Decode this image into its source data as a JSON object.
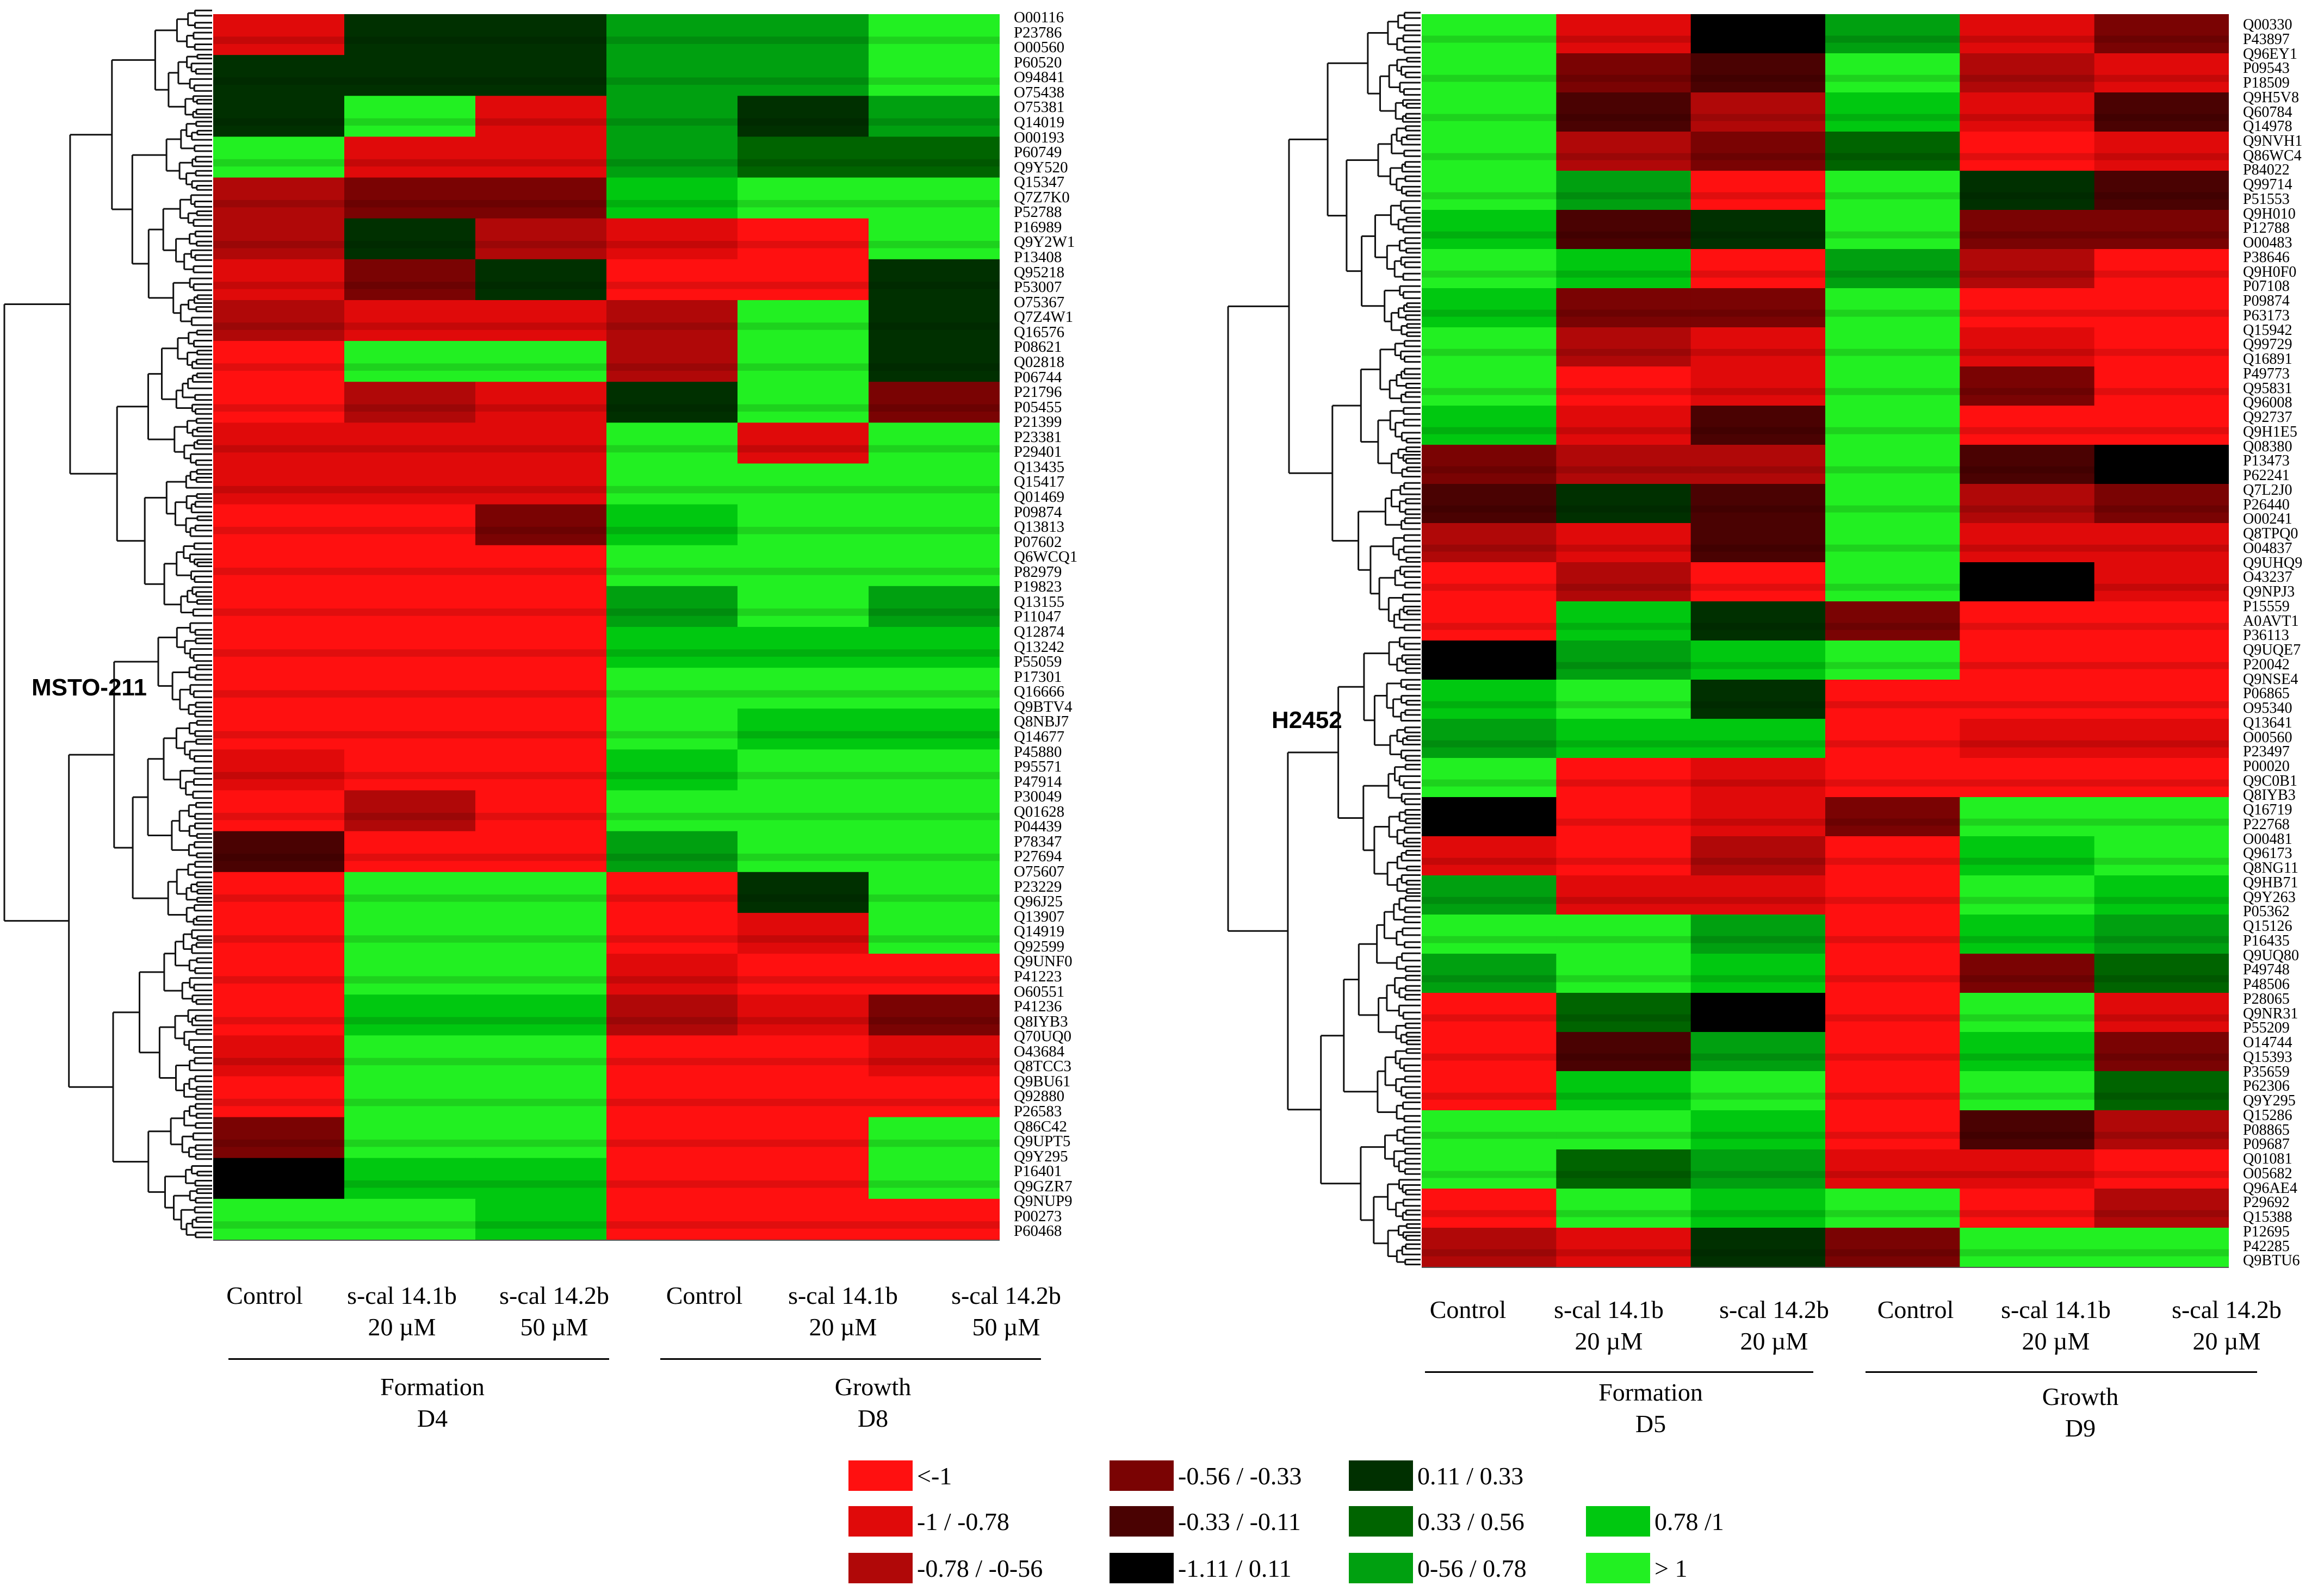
{
  "colors": {
    "neg_gt1": "#ff1010",
    "neg_1_078": "#e00a0a",
    "neg_078_056": "#b00808",
    "neg_056_033": "#7a0303",
    "neg_033_011": "#4a0202",
    "near_zero": "#000000",
    "pos_011_033": "#003000",
    "pos_033_056": "#006400",
    "pos_056_078": "#00a010",
    "pos_078_1": "#00c810",
    "pos_gt1": "#22f022"
  },
  "chart_data": [
    {
      "type": "heatmap",
      "cell_line": "MSTO-211",
      "columns": [
        {
          "label": "Control",
          "dose": ""
        },
        {
          "label": "s-cal 14.1b",
          "dose": "20 µM"
        },
        {
          "label": "s-cal 14.2b",
          "dose": "50 µM"
        },
        {
          "label": "Control",
          "dose": ""
        },
        {
          "label": "s-cal 14.1b",
          "dose": "20 µM"
        },
        {
          "label": "s-cal 14.2b",
          "dose": "50 µM"
        }
      ],
      "groups": [
        {
          "name": "Formation",
          "day": "D4",
          "columns": [
            0,
            1,
            2
          ]
        },
        {
          "name": "Growth",
          "day": "D8",
          "columns": [
            3,
            4,
            5
          ]
        }
      ],
      "row_labels": [
        "O00116",
        "P23786",
        "O00560",
        "P60520",
        "O94841",
        "O75438",
        "O75381",
        "Q14019",
        "O00193",
        "P60749",
        "Q9Y520",
        "Q15347",
        "Q7Z7K0",
        "P52788",
        "P16989",
        "Q9Y2W1",
        "P13408",
        "Q95218",
        "P53007",
        "O75367",
        "Q7Z4W1",
        "Q16576",
        "P08621",
        "Q02818",
        "P06744",
        "P21796",
        "P05455",
        "P21399",
        "P23381",
        "P29401",
        "Q13435",
        "Q15417",
        "Q01469",
        "P09874",
        "Q13813",
        "P07602",
        "Q6WCQ1",
        "P82979",
        "P19823",
        "Q13155",
        "P11047",
        "Q12874",
        "Q13242",
        "P55059",
        "P17301",
        "Q16666",
        "Q9BTV4",
        "Q8NBJ7",
        "Q14677",
        "P45880",
        "P95571",
        "P47914",
        "P30049",
        "Q01628",
        "P04439",
        "P78347",
        "P27694",
        "O75607",
        "P23229",
        "Q96J25",
        "Q13907",
        "Q14919",
        "Q92599",
        "Q9UNF0",
        "P41223",
        "O60551",
        "P41236",
        "Q8IYB3",
        "Q70UQ0",
        "O43684",
        "Q8TCC3",
        "Q9BU61",
        "Q92880",
        "P26583",
        "Q86C42",
        "Q9UPT5",
        "Q9Y295",
        "P16401",
        "Q9GZR7",
        "Q9NUP9",
        "P00273",
        "P60468"
      ],
      "row_blocks": [
        [
          1,
          6,
          6,
          8,
          8,
          10
        ],
        [
          6,
          6,
          6,
          8,
          8,
          10
        ],
        [
          6,
          10,
          1,
          8,
          6,
          8
        ],
        [
          10,
          1,
          1,
          8,
          7,
          7
        ],
        [
          2,
          3,
          3,
          9,
          10,
          10
        ],
        [
          2,
          6,
          2,
          1,
          0,
          10
        ],
        [
          1,
          3,
          6,
          0,
          0,
          6
        ],
        [
          2,
          1,
          1,
          2,
          10,
          6
        ],
        [
          0,
          10,
          10,
          2,
          10,
          6
        ],
        [
          0,
          2,
          1,
          6,
          10,
          3
        ],
        [
          1,
          1,
          1,
          10,
          1,
          10
        ],
        [
          1,
          1,
          1,
          10,
          10,
          10
        ],
        [
          0,
          0,
          3,
          9,
          10,
          10
        ],
        [
          0,
          0,
          0,
          10,
          10,
          10
        ],
        [
          0,
          0,
          0,
          8,
          10,
          8
        ],
        [
          0,
          0,
          0,
          9,
          9,
          9
        ],
        [
          0,
          0,
          0,
          10,
          10,
          10
        ],
        [
          0,
          0,
          0,
          10,
          9,
          9
        ],
        [
          1,
          0,
          0,
          9,
          10,
          10
        ],
        [
          0,
          2,
          0,
          10,
          10,
          10
        ],
        [
          4,
          0,
          0,
          8,
          10,
          10
        ],
        [
          0,
          10,
          10,
          0,
          6,
          10
        ],
        [
          0,
          10,
          10,
          0,
          1,
          10
        ],
        [
          0,
          10,
          10,
          1,
          0,
          0
        ],
        [
          0,
          9,
          9,
          2,
          1,
          3
        ],
        [
          1,
          10,
          10,
          0,
          0,
          1
        ],
        [
          0,
          10,
          10,
          0,
          0,
          0
        ],
        [
          3,
          10,
          10,
          0,
          0,
          10
        ],
        [
          5,
          9,
          9,
          0,
          0,
          10
        ],
        [
          10,
          10,
          9,
          0,
          0,
          0
        ]
      ],
      "legend": [
        {
          "label": "<-1",
          "color_key": "neg_gt1"
        },
        {
          "label": "-1 / -0.78",
          "color_key": "neg_1_078"
        },
        {
          "label": "-0.78 / -0-56",
          "color_key": "neg_078_056"
        },
        {
          "label": "-0.56 / -0.33",
          "color_key": "neg_056_033"
        },
        {
          "label": "-0.33 / -0.11",
          "color_key": "neg_033_011"
        },
        {
          "label": "-1.11 / 0.11",
          "color_key": "near_zero"
        },
        {
          "label": "0.11 / 0.33",
          "color_key": "pos_011_033"
        },
        {
          "label": "0.33 / 0.56",
          "color_key": "pos_033_056"
        },
        {
          "label": "0-56 / 0.78",
          "color_key": "pos_056_078"
        },
        {
          "label": "0.78 /1",
          "color_key": "pos_078_1"
        },
        {
          "label": "> 1",
          "color_key": "pos_gt1"
        }
      ]
    },
    {
      "type": "heatmap",
      "cell_line": "H2452",
      "columns": [
        {
          "label": "Control",
          "dose": ""
        },
        {
          "label": "s-cal 14.1b",
          "dose": "20 µM"
        },
        {
          "label": "s-cal 14.2b",
          "dose": "20 µM"
        },
        {
          "label": "Control",
          "dose": ""
        },
        {
          "label": "s-cal 14.1b",
          "dose": "20 µM"
        },
        {
          "label": "s-cal 14.2b",
          "dose": "20 µM"
        }
      ],
      "groups": [
        {
          "name": "Formation",
          "day": "D5",
          "columns": [
            0,
            1,
            2
          ]
        },
        {
          "name": "Growth",
          "day": "D9",
          "columns": [
            3,
            4,
            5
          ]
        }
      ],
      "row_labels": [
        "Q00330",
        "P43897",
        "Q96EY1",
        "P09543",
        "P18509",
        "Q9H5V8",
        "Q60784",
        "Q14978",
        "Q9NVH1",
        "Q86WC4",
        "P84022",
        "Q99714",
        "P51553",
        "Q9H010",
        "P12788",
        "O00483",
        "P38646",
        "Q9H0F0",
        "P07108",
        "P09874",
        "P63173",
        "Q15942",
        "Q99729",
        "Q16891",
        "P49773",
        "Q95831",
        "Q96008",
        "Q92737",
        "Q9H1E5",
        "Q08380",
        "P13473",
        "P62241",
        "Q7L2J0",
        "P26440",
        "O00241",
        "Q8TPQ0",
        "O04837",
        "Q9UHQ9",
        "O43237",
        "Q9NPJ3",
        "P15559",
        "A0AVT1",
        "P36113",
        "Q9UQE7",
        "P20042",
        "Q9NSE4",
        "P06865",
        "O95340",
        "Q13641",
        "O00560",
        "P23497",
        "P00020",
        "Q9C0B1",
        "Q8IYB3",
        "Q16719",
        "P22768",
        "O00481",
        "Q96173",
        "Q8NG11",
        "Q9HB71",
        "Q9Y263",
        "P05362",
        "Q15126",
        "P16435",
        "Q9UQ80",
        "P49748",
        "P48506",
        "P28065",
        "Q9NR31",
        "P55209",
        "O14744",
        "Q15393",
        "P35659",
        "P62306",
        "Q9Y295",
        "Q15286",
        "P08865",
        "P09687",
        "Q01081",
        "O05682",
        "Q96AE4",
        "P29692",
        "Q15388",
        "P12695",
        "P42285",
        "Q9BTU6"
      ],
      "row_blocks": [
        [
          10,
          1,
          5,
          8,
          1,
          3
        ],
        [
          10,
          3,
          4,
          10,
          2,
          1
        ],
        [
          10,
          4,
          2,
          9,
          1,
          4
        ],
        [
          10,
          2,
          3,
          7,
          0,
          1
        ],
        [
          10,
          8,
          0,
          10,
          6,
          4
        ],
        [
          9,
          4,
          6,
          10,
          3,
          3
        ],
        [
          10,
          9,
          0,
          8,
          2,
          0
        ],
        [
          9,
          3,
          3,
          10,
          0,
          0
        ],
        [
          10,
          2,
          1,
          10,
          1,
          0
        ],
        [
          10,
          0,
          1,
          10,
          3,
          0
        ],
        [
          9,
          1,
          4,
          10,
          0,
          0
        ],
        [
          3,
          2,
          2,
          10,
          4,
          5
        ],
        [
          4,
          6,
          4,
          10,
          2,
          3
        ],
        [
          2,
          1,
          4,
          10,
          1,
          1
        ],
        [
          0,
          2,
          0,
          10,
          5,
          1
        ],
        [
          0,
          9,
          6,
          3,
          0,
          0
        ],
        [
          5,
          8,
          9,
          10,
          0,
          0
        ],
        [
          9,
          10,
          6,
          0,
          0,
          0
        ],
        [
          8,
          9,
          9,
          0,
          1,
          1
        ],
        [
          10,
          0,
          1,
          0,
          0,
          0
        ],
        [
          5,
          0,
          1,
          3,
          10,
          10
        ],
        [
          1,
          0,
          2,
          0,
          9,
          10
        ],
        [
          8,
          1,
          1,
          0,
          10,
          9
        ],
        [
          10,
          10,
          8,
          0,
          9,
          8
        ],
        [
          8,
          10,
          9,
          0,
          3,
          7
        ],
        [
          0,
          7,
          5,
          0,
          10,
          1
        ],
        [
          0,
          4,
          8,
          0,
          9,
          3
        ],
        [
          0,
          9,
          10,
          0,
          10,
          7
        ],
        [
          10,
          10,
          9,
          0,
          4,
          2
        ],
        [
          10,
          7,
          8,
          1,
          1,
          0
        ],
        [
          0,
          10,
          9,
          10,
          0,
          2
        ],
        [
          2,
          1,
          6,
          3,
          10,
          10
        ]
      ],
      "legend": []
    }
  ]
}
